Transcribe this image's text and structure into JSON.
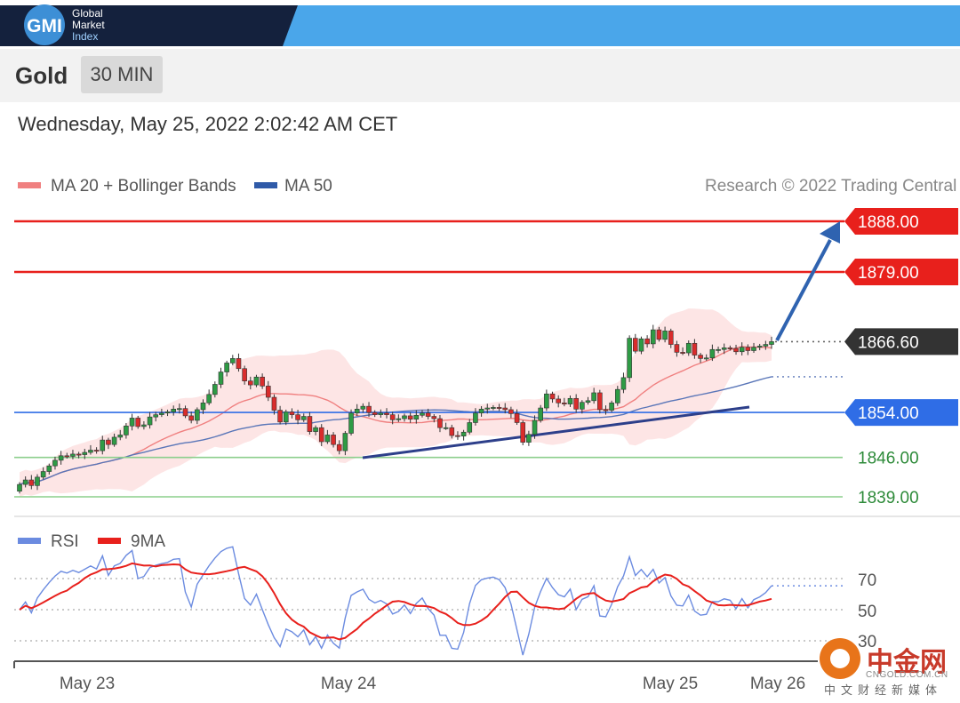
{
  "header": {
    "logo_text": "GMI",
    "brand_lines": [
      "Global",
      "Market",
      "Index"
    ],
    "navy": "#14213d",
    "blue": "#4aa6ea"
  },
  "toolbar": {
    "asset": "Gold",
    "timeframe": "30 MIN"
  },
  "datetime": "Wednesday, May 25, 2022 2:02:42 AM CET",
  "legend": {
    "ma20": "MA 20 + Bollinger Bands",
    "ma50": "MA 50",
    "credit": "Research © 2022 Trading Central"
  },
  "rsi_legend": {
    "rsi": "RSI",
    "ma9": "9MA"
  },
  "watermark": {
    "text": "中金网",
    "url": "CNGOLD.COM.CN",
    "sub": "中文财经新媒体"
  },
  "chart_data": [
    {
      "type": "candlestick",
      "title": "Gold 30 MIN",
      "ylim": [
        1836,
        1892
      ],
      "x_ticks": [
        "May 23",
        "May 24",
        "May 25",
        "May 26"
      ],
      "levels": [
        {
          "value": 1888.0,
          "label": "1888.00",
          "color": "#e8201c",
          "style": "resistance"
        },
        {
          "value": 1879.0,
          "label": "1879.00",
          "color": "#e8201c",
          "style": "resistance"
        },
        {
          "value": 1866.6,
          "label": "1866.60",
          "color": "#333333",
          "style": "last"
        },
        {
          "value": 1854.0,
          "label": "1854.00",
          "color": "#2f6de6",
          "style": "pivot"
        },
        {
          "value": 1846.0,
          "label": "1846.00",
          "color": "#8ccf8c",
          "style": "support"
        },
        {
          "value": 1839.0,
          "label": "1839.00",
          "color": "#8ccf8c",
          "style": "support"
        }
      ],
      "close": [
        1841.2,
        1842.0,
        1841.0,
        1842.5,
        1843.5,
        1844.5,
        1845.5,
        1846.3,
        1846.2,
        1846.6,
        1846.5,
        1846.9,
        1847.3,
        1847.2,
        1849.1,
        1848.3,
        1849.6,
        1850.0,
        1851.6,
        1853.0,
        1851.5,
        1851.8,
        1853.2,
        1853.6,
        1853.9,
        1854.1,
        1854.6,
        1854.7,
        1853.4,
        1852.6,
        1854.5,
        1855.7,
        1857.2,
        1859.0,
        1861.2,
        1862.8,
        1863.6,
        1861.8,
        1859.6,
        1858.9,
        1860.3,
        1858.7,
        1856.7,
        1854.4,
        1852.3,
        1854.1,
        1853.6,
        1852.7,
        1853.3,
        1850.6,
        1851.3,
        1848.8,
        1850.0,
        1848.3,
        1847.2,
        1850.3,
        1853.9,
        1854.6,
        1855.1,
        1854.0,
        1853.6,
        1853.9,
        1853.6,
        1852.7,
        1852.9,
        1853.4,
        1852.8,
        1853.5,
        1853.9,
        1853.3,
        1852.9,
        1851.3,
        1851.3,
        1849.9,
        1849.8,
        1850.5,
        1852.2,
        1853.9,
        1854.6,
        1854.8,
        1854.9,
        1854.8,
        1854.5,
        1853.8,
        1852.2,
        1848.7,
        1850.1,
        1852.6,
        1854.8,
        1857.3,
        1856.4,
        1855.7,
        1855.5,
        1856.5,
        1854.6,
        1855.8,
        1856.1,
        1857.5,
        1854.5,
        1854.4,
        1855.7,
        1858.1,
        1860.2,
        1867.2,
        1864.9,
        1867.1,
        1866.2,
        1868.7,
        1867.0,
        1868.5,
        1866.1,
        1864.7,
        1864.6,
        1866.3,
        1864.2,
        1863.6,
        1863.7,
        1865.2,
        1865.2,
        1865.5,
        1865.4,
        1864.8,
        1865.6,
        1865.0,
        1865.6,
        1865.8,
        1866.1,
        1866.6
      ]
    },
    {
      "type": "line",
      "title": "RSI",
      "ylim": [
        20,
        80
      ],
      "y_ticks": [
        30,
        50,
        70
      ],
      "series": [
        {
          "name": "RSI",
          "color": "#6b8be0"
        },
        {
          "name": "9MA",
          "color": "#e8201c"
        }
      ]
    }
  ]
}
